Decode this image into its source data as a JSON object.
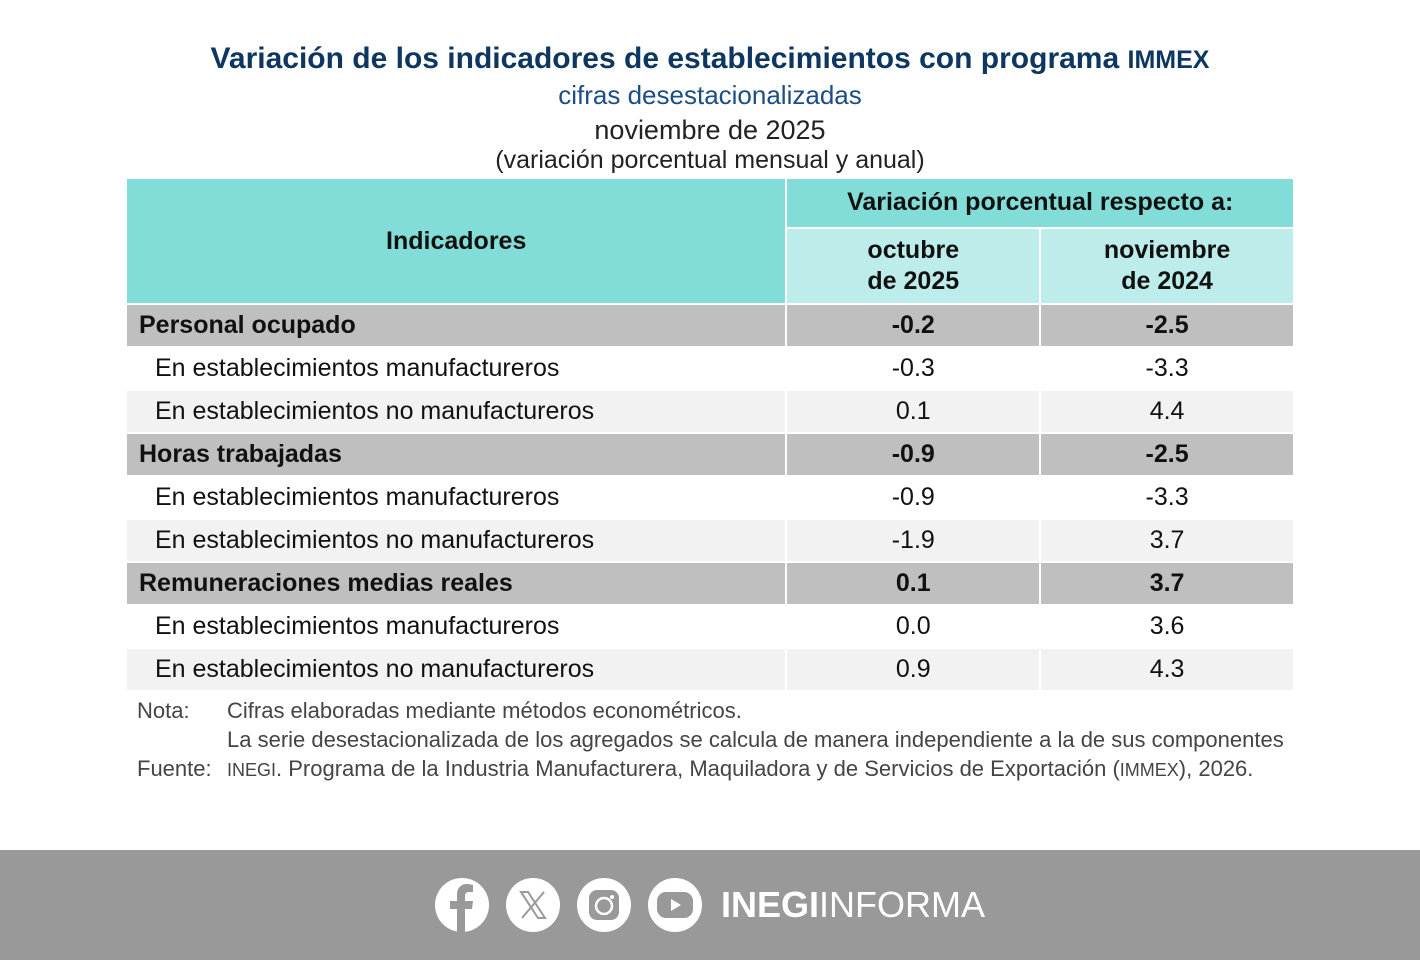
{
  "title": {
    "main": "Variación de los indicadores de establecimientos con programa",
    "main_suffix": "IMMEX",
    "subtitle": "cifras desestacionalizadas",
    "period": "noviembre de 2025",
    "unit": "(variación porcentual mensual y anual)"
  },
  "table": {
    "header_indicators": "Indicadores",
    "header_variation": "Variación porcentual respecto a:",
    "col1": [
      "octubre",
      "de 2025"
    ],
    "col2": [
      "noviembre",
      "de 2024"
    ],
    "rows": [
      {
        "label": "Personal ocupado",
        "m": "-0.2",
        "a": "-2.5",
        "type": "group"
      },
      {
        "label": "En establecimientos manufactureros",
        "m": "-0.3",
        "a": "-3.3",
        "type": "sub"
      },
      {
        "label": "En establecimientos no manufactureros",
        "m": "0.1",
        "a": "4.4",
        "type": "sub"
      },
      {
        "label": "Horas trabajadas",
        "m": "-0.9",
        "a": "-2.5",
        "type": "group"
      },
      {
        "label": "En establecimientos manufactureros",
        "m": "-0.9",
        "a": "-3.3",
        "type": "sub"
      },
      {
        "label": "En establecimientos no manufactureros",
        "m": "-1.9",
        "a": "3.7",
        "type": "sub"
      },
      {
        "label": "Remuneraciones medias reales",
        "m": "0.1",
        "a": "3.7",
        "type": "group"
      },
      {
        "label": "En establecimientos manufactureros",
        "m": "0.0",
        "a": "3.6",
        "type": "sub"
      },
      {
        "label": "En establecimientos no manufactureros",
        "m": "0.9",
        "a": "4.3",
        "type": "sub"
      }
    ]
  },
  "notes": {
    "nota_label": "Nota:",
    "nota_1": "Cifras elaboradas mediante métodos econométricos.",
    "nota_2": "La serie desestacionalizada de los agregados se calcula de manera independiente a la de sus componentes",
    "fuente_label": "Fuente:",
    "fuente_org": "INEGI",
    "fuente_text": ". Programa de la Industria Manufacturera, Maquiladora y de Servicios de Exportación (",
    "fuente_abbr": "IMMEX",
    "fuente_end": "), 2026."
  },
  "footer": {
    "brand_bold": "INEGI",
    "brand_light": "INFORMA",
    "icons": [
      "facebook-icon",
      "x-icon",
      "instagram-icon",
      "youtube-icon"
    ]
  },
  "colors": {
    "title": "#0d3760",
    "header": "#82ddd9",
    "subheader": "#bdedeb",
    "group_row": "#bfbfbf",
    "footer": "#999999"
  }
}
